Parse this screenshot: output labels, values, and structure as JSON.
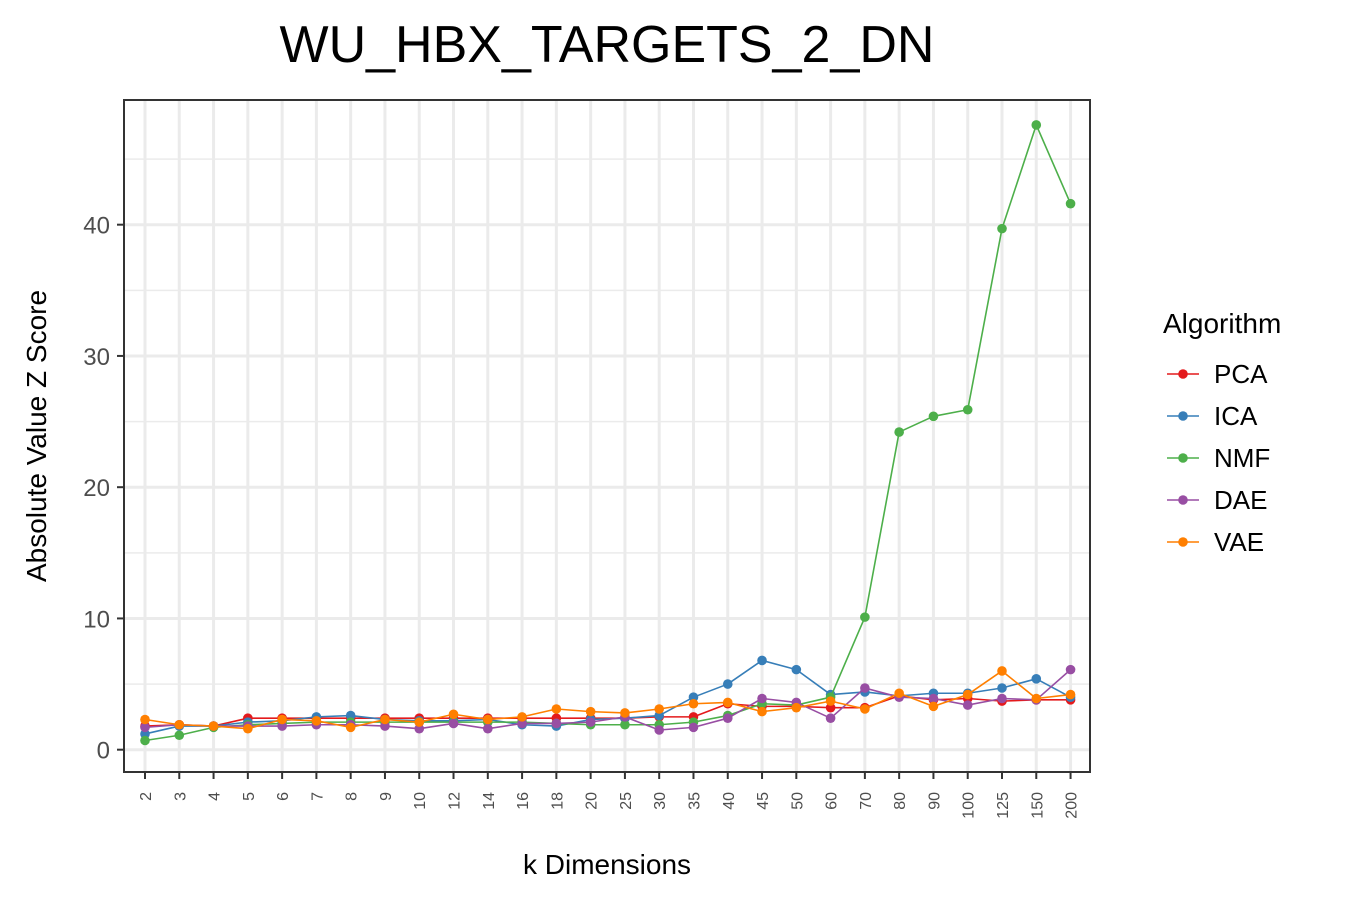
{
  "chart_data": {
    "type": "line",
    "title": "WU_HBX_TARGETS_2_DN",
    "xlabel": "k Dimensions",
    "ylabel": "Absolute Value Z Score",
    "categories": [
      "2",
      "3",
      "4",
      "5",
      "6",
      "7",
      "8",
      "9",
      "10",
      "12",
      "14",
      "16",
      "18",
      "20",
      "25",
      "30",
      "35",
      "40",
      "45",
      "50",
      "60",
      "70",
      "80",
      "90",
      "100",
      "125",
      "150",
      "200"
    ],
    "yticks": [
      "0",
      "10",
      "20",
      "30",
      "40"
    ],
    "ylim": [
      -1.7,
      49.5
    ],
    "grid": true,
    "legend_position": "right",
    "legend_title": "Algorithm",
    "series": [
      {
        "name": "PCA",
        "color": "#E41A1C",
        "values": [
          1.8,
          1.9,
          1.8,
          2.4,
          2.4,
          2.4,
          2.4,
          2.4,
          2.4,
          2.4,
          2.4,
          2.4,
          2.4,
          2.4,
          2.4,
          2.5,
          2.5,
          3.5,
          3.3,
          3.3,
          3.2,
          3.2,
          4.1,
          3.8,
          3.9,
          3.7,
          3.8,
          3.8
        ]
      },
      {
        "name": "ICA",
        "color": "#377EB8",
        "values": [
          1.2,
          1.8,
          1.8,
          2.1,
          2.2,
          2.5,
          2.6,
          2.3,
          2.2,
          2.2,
          2.3,
          1.9,
          1.8,
          2.3,
          2.4,
          2.6,
          4.0,
          5.0,
          6.8,
          6.1,
          4.2,
          4.4,
          4.1,
          4.3,
          4.3,
          4.7,
          5.4,
          4.0
        ]
      },
      {
        "name": "NMF",
        "color": "#4DAF4A",
        "values": [
          0.7,
          1.1,
          1.7,
          1.9,
          2.0,
          2.1,
          2.1,
          2.1,
          2.1,
          2.1,
          2.1,
          2.1,
          2.0,
          1.9,
          1.9,
          1.9,
          2.1,
          2.6,
          3.5,
          3.4,
          4.0,
          10.1,
          24.2,
          25.4,
          25.9,
          39.7,
          47.6,
          41.6
        ]
      },
      {
        "name": "DAE",
        "color": "#984EA3",
        "values": [
          1.7,
          1.9,
          1.8,
          1.8,
          1.8,
          1.9,
          1.9,
          1.8,
          1.6,
          2.0,
          1.6,
          2.0,
          2.0,
          2.1,
          2.5,
          1.5,
          1.7,
          2.4,
          3.9,
          3.6,
          2.4,
          4.7,
          4.0,
          3.9,
          3.4,
          3.9,
          3.8,
          6.1
        ]
      },
      {
        "name": "VAE",
        "color": "#FF7F00",
        "values": [
          2.3,
          1.9,
          1.8,
          1.6,
          2.3,
          2.2,
          1.7,
          2.3,
          2.1,
          2.7,
          2.3,
          2.5,
          3.1,
          2.9,
          2.8,
          3.1,
          3.5,
          3.6,
          2.9,
          3.2,
          3.7,
          3.1,
          4.3,
          3.3,
          4.2,
          6.0,
          3.9,
          4.2
        ]
      }
    ]
  }
}
